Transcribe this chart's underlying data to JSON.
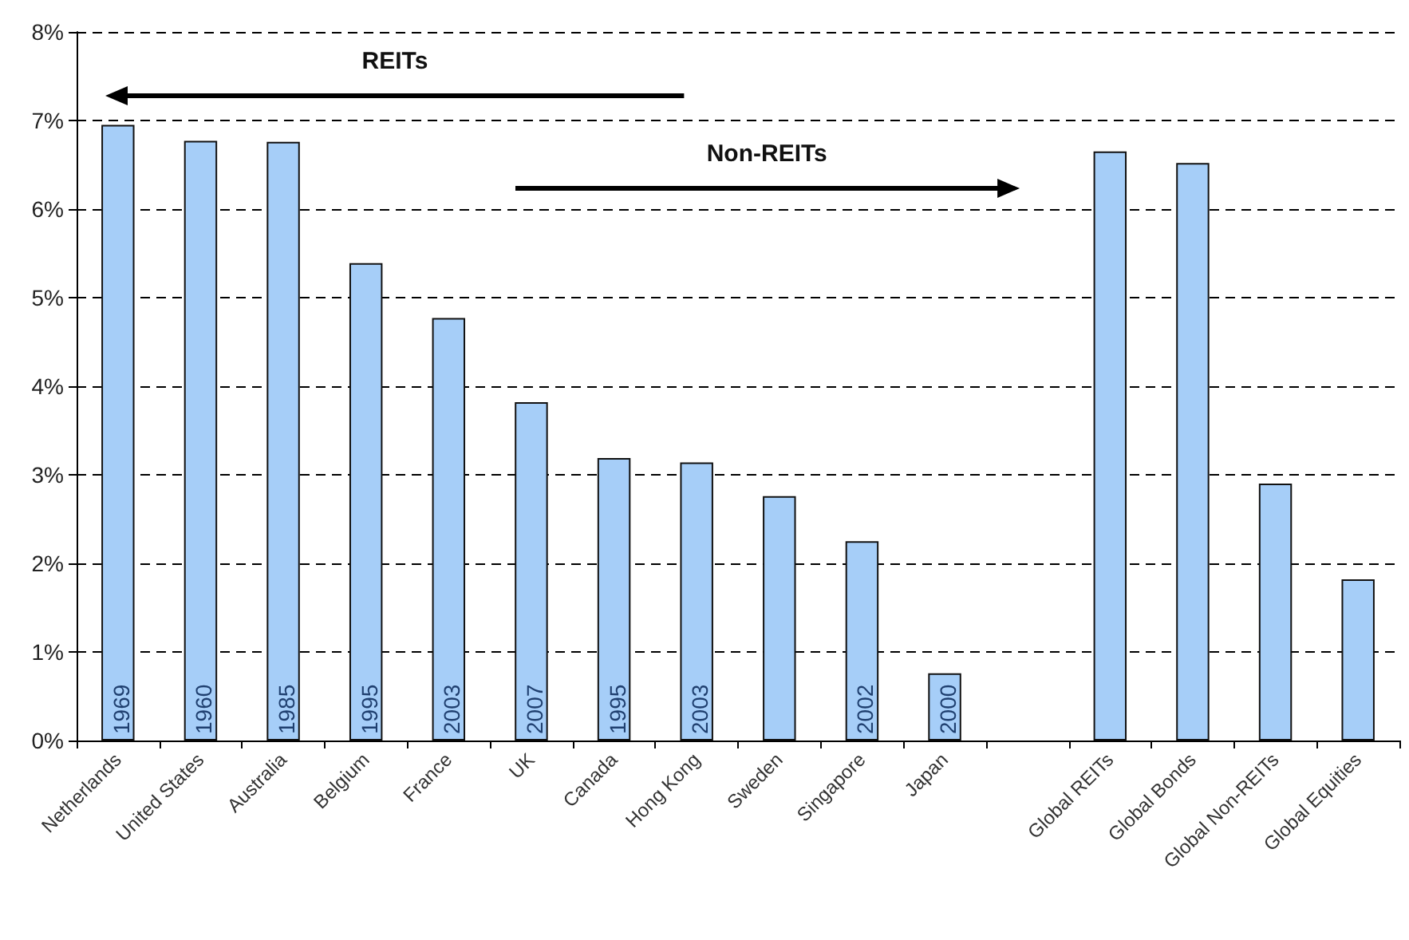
{
  "chart_data": {
    "type": "bar",
    "categories": [
      "Netherlands",
      "United States",
      "Australia",
      "Belgium",
      "France",
      "UK",
      "Canada",
      "Hong Kong",
      "Sweden",
      "Singapore",
      "Japan",
      null,
      "Global REITs",
      "Global Bonds",
      "Global Non-REITs",
      "Global Equities"
    ],
    "values": [
      6.95,
      6.77,
      6.76,
      5.39,
      4.77,
      3.82,
      3.19,
      3.14,
      2.76,
      2.25,
      0.76,
      null,
      6.65,
      6.52,
      2.9,
      1.82
    ],
    "color": "#a6cef8",
    "ylim": [
      0,
      8
    ],
    "yticks": [
      {
        "value": 0,
        "label": "0%"
      },
      {
        "value": 1,
        "label": "1%"
      },
      {
        "value": 2,
        "label": "2%"
      },
      {
        "value": 3,
        "label": "3%"
      },
      {
        "value": 4,
        "label": "4%"
      },
      {
        "value": 5,
        "label": "5%"
      },
      {
        "value": 6,
        "label": "6%"
      },
      {
        "value": 7,
        "label": "7%"
      },
      {
        "value": 8,
        "label": "8%"
      }
    ],
    "grid": "y",
    "annotations": [
      "REITs",
      "Non-REITs",
      {
        "text": "1969",
        "x": "Netherlands",
        "y": 0
      },
      {
        "text": "1960",
        "x": "United States",
        "y": 0
      },
      {
        "text": "1985",
        "x": "Australia",
        "y": 0
      },
      {
        "text": "1995",
        "x": "Belgium",
        "y": 0
      },
      {
        "text": "2003",
        "x": "France",
        "y": 0
      },
      {
        "text": "2007",
        "x": "UK",
        "y": 0
      },
      {
        "text": "1995",
        "x": "Canada",
        "y": 0
      },
      {
        "text": "2003",
        "x": "Hong Kong",
        "y": 0
      },
      {
        "text": "2002",
        "x": "Singapore",
        "y": 0
      },
      {
        "text": "2000",
        "x": "Japan",
        "y": 0
      }
    ]
  }
}
